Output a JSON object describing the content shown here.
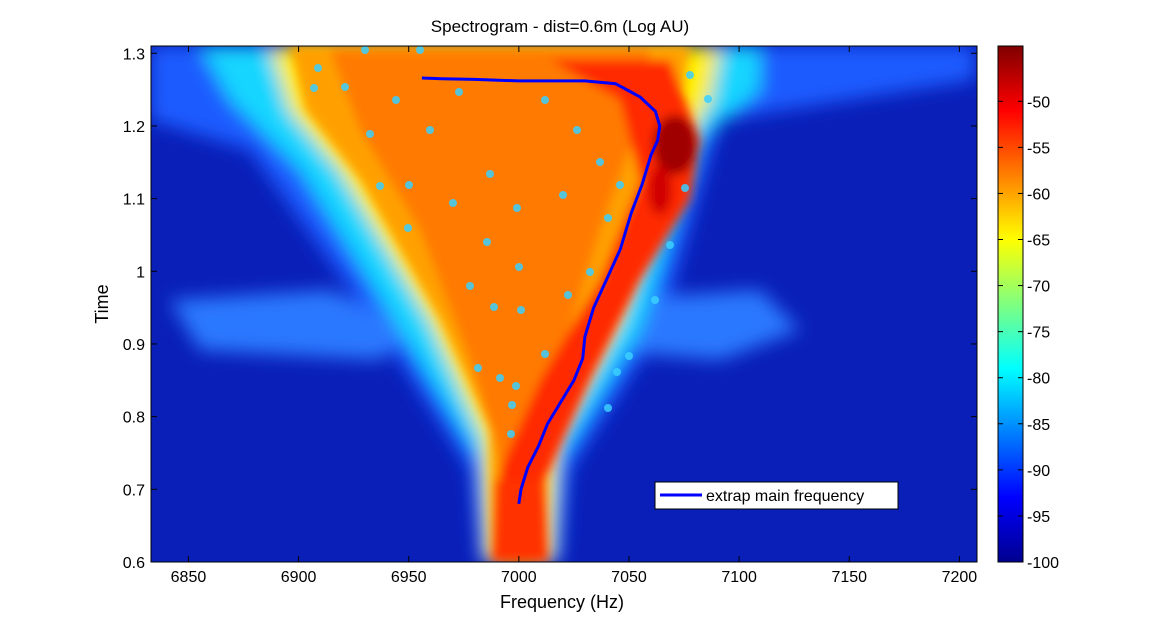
{
  "chart_data": {
    "type": "heatmap",
    "title": "Spectrogram - dist=0.6m (Log AU)",
    "xlabel": "Frequency (Hz)",
    "ylabel": "Time",
    "xlim": [
      6833,
      7208
    ],
    "ylim": [
      0.6,
      1.31
    ],
    "x_ticks": [
      6850,
      6900,
      6950,
      7000,
      7050,
      7100,
      7150,
      7200
    ],
    "y_ticks": [
      0.6,
      0.7,
      0.8,
      0.9,
      1,
      1.1,
      1.2,
      1.3
    ],
    "colorbar": {
      "colormap": "jet",
      "range": [
        -100,
        -44
      ],
      "ticks": [
        -100,
        -95,
        -90,
        -85,
        -80,
        -75,
        -70,
        -65,
        -60,
        -55,
        -50
      ]
    },
    "series": [
      {
        "name": "extrap main frequency",
        "color": "#0000ff",
        "x": [
          7000,
          7001,
          7004,
          7009,
          7013,
          7019,
          7025,
          7029,
          7030,
          7034,
          7040,
          7046,
          7051,
          7056,
          7060,
          7063,
          7064,
          7062,
          7055,
          7044,
          7030,
          7000,
          6980,
          6965,
          6956
        ],
        "y": [
          0.68,
          0.7,
          0.73,
          0.76,
          0.79,
          0.82,
          0.85,
          0.88,
          0.91,
          0.95,
          0.99,
          1.03,
          1.08,
          1.12,
          1.16,
          1.18,
          1.2,
          1.22,
          1.24,
          1.258,
          1.262,
          1.262,
          1.264,
          1.265,
          1.266
        ]
      }
    ],
    "legend": {
      "position": "bottom-right"
    },
    "grid": false
  }
}
